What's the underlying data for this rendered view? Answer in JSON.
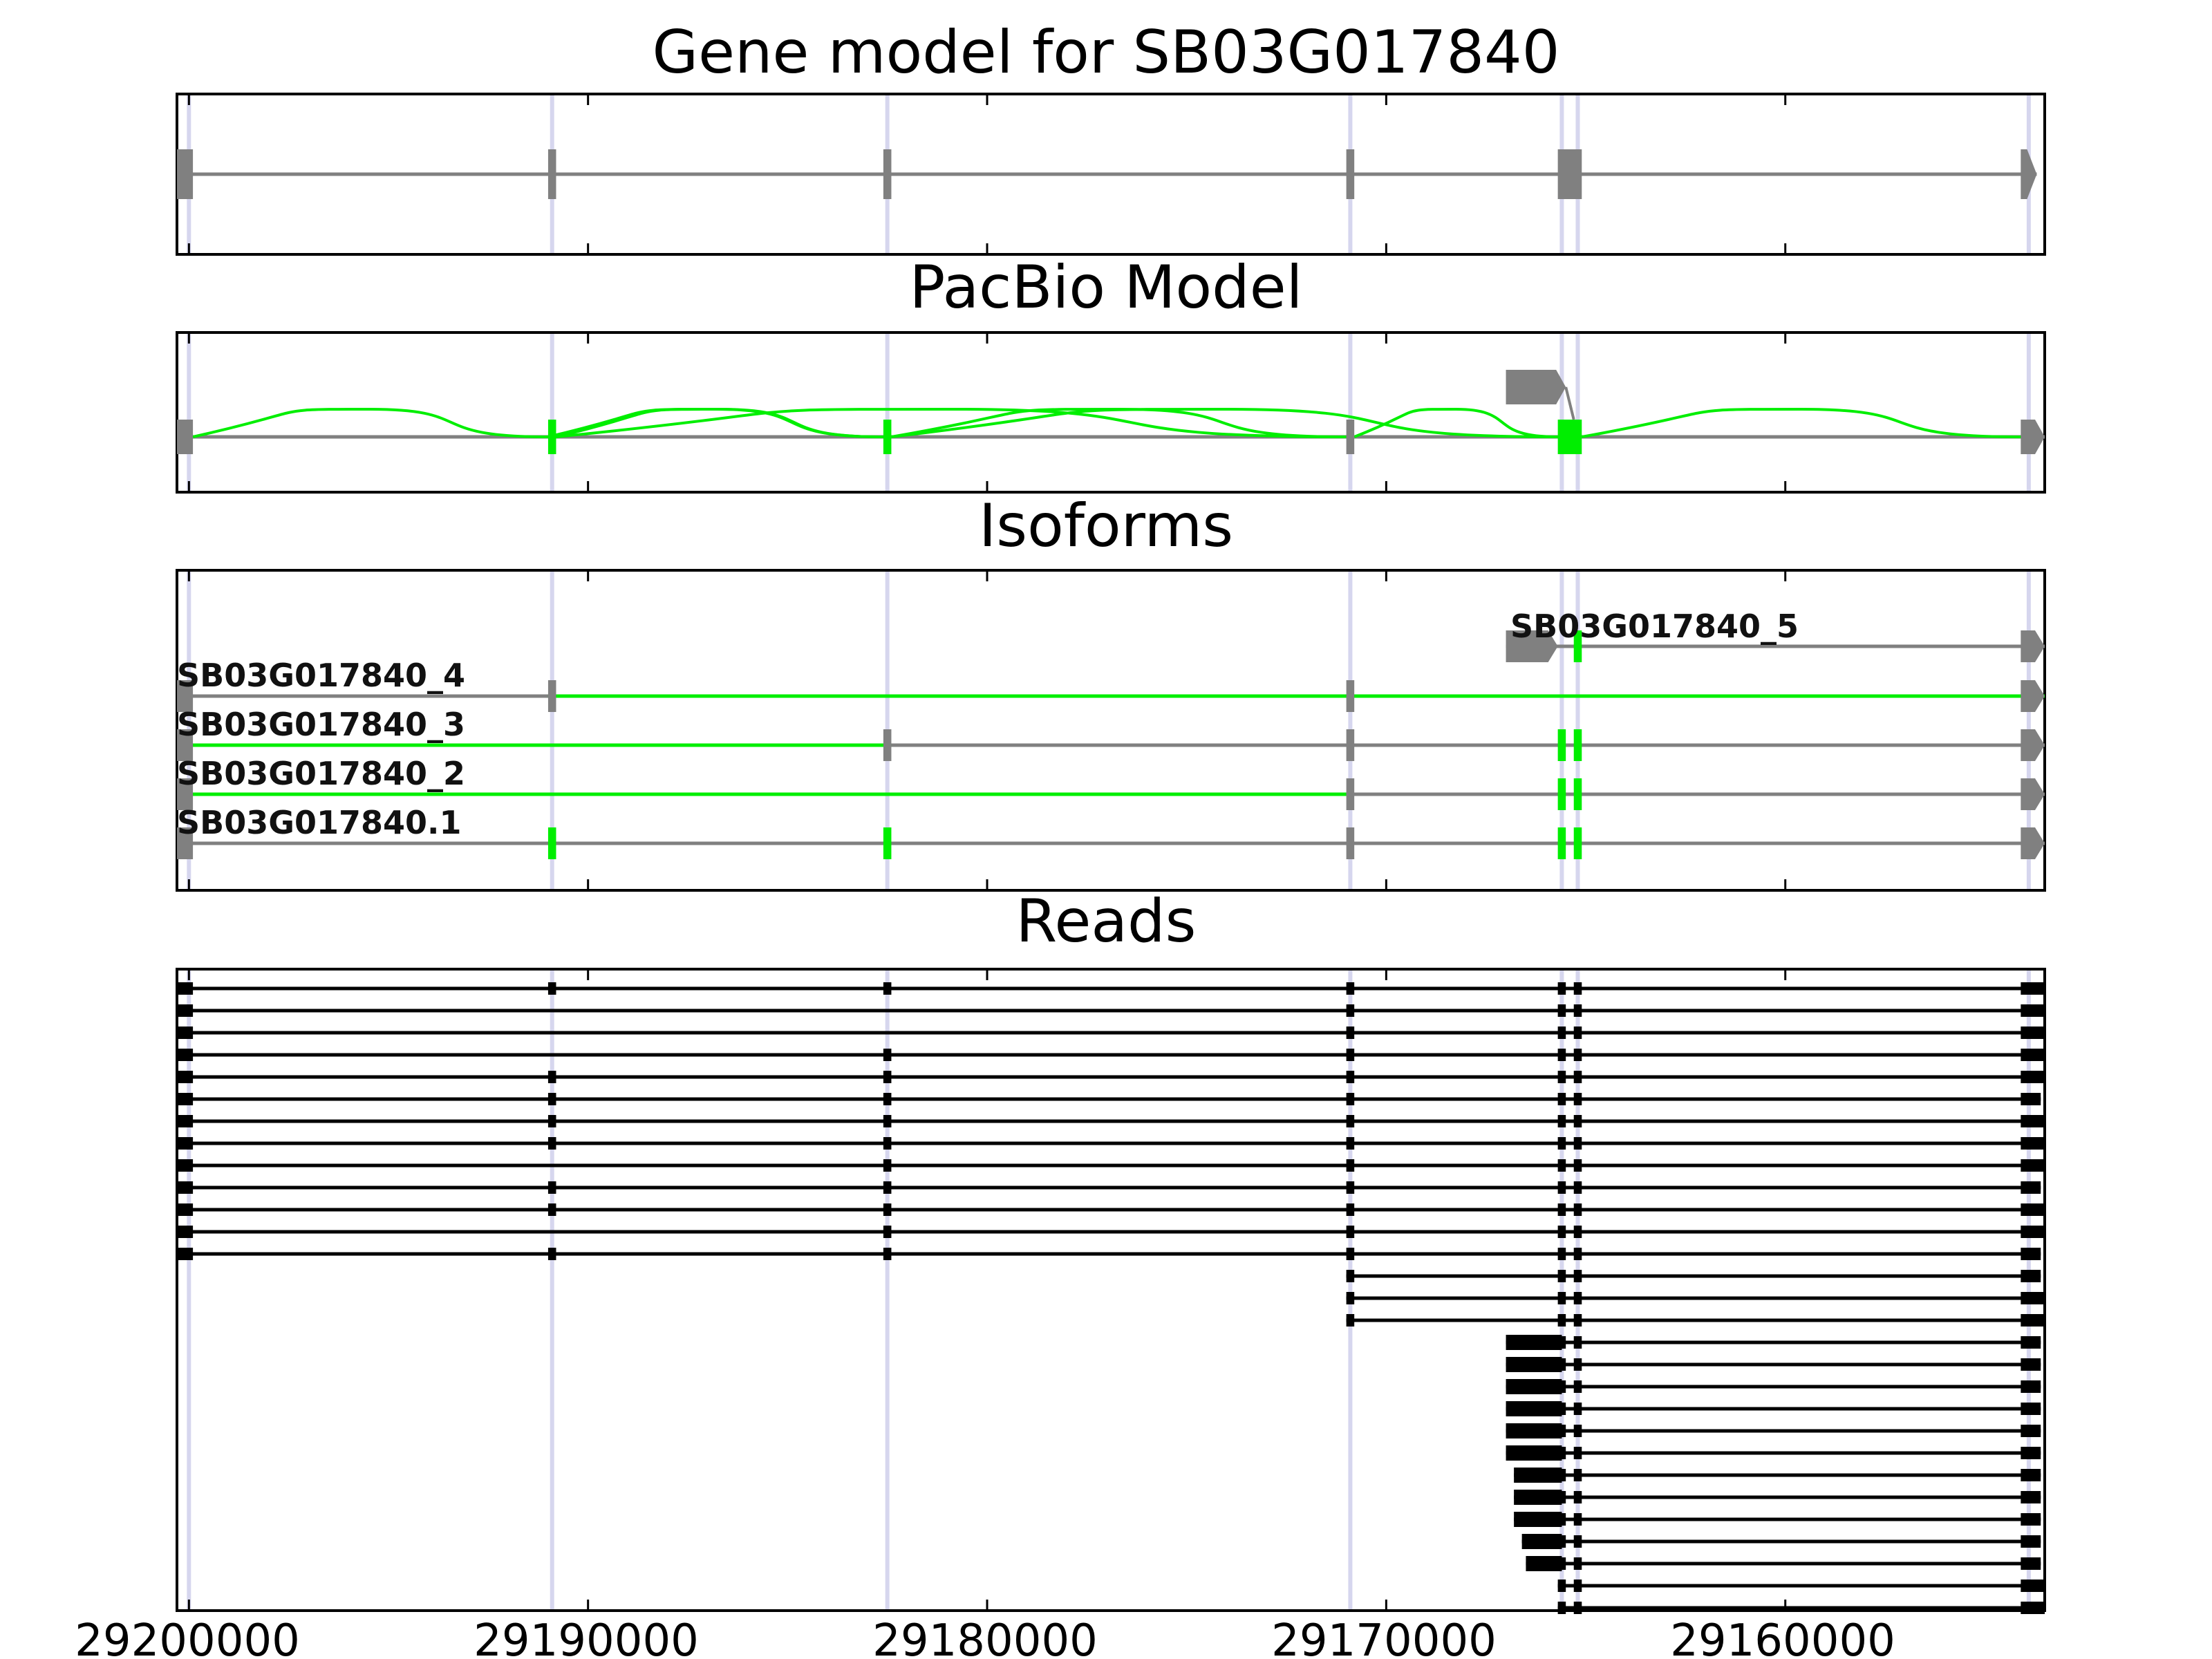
{
  "chart_data": {
    "type": "gene_model",
    "xaxis": {
      "range": [
        29200300,
        29153500
      ],
      "ticks": [
        29200000,
        29190000,
        29180000,
        29170000,
        29160000
      ],
      "tick_labels": [
        "29200000",
        "29190000",
        "29180000",
        "29170000",
        "29160000"
      ]
    },
    "colors": {
      "gene": "#808080",
      "pacbio": "#00ee00",
      "read": "#000000",
      "highlight": "#d6d6ee",
      "frame": "#000000"
    },
    "splice_sites": [
      29200000,
      29190900,
      29182500,
      29170900,
      29165600,
      29165200,
      29153900
    ],
    "panels": [
      {
        "title": "Gene model for SB03G017840",
        "kind": "gene",
        "exons": [
          [
            29200300,
            29199900
          ],
          [
            29191000,
            29190800
          ],
          [
            29182600,
            29182400
          ],
          [
            29171000,
            29170800
          ],
          [
            29165700,
            29165100
          ],
          [
            29154100,
            29153700
          ]
        ],
        "end_arrow": true
      },
      {
        "title": "PacBio Model",
        "kind": "pacbio",
        "exons": [
          [
            29200300,
            29199900
          ],
          [
            29191000,
            29190800
          ],
          [
            29182600,
            29182400
          ],
          [
            29171000,
            29170800
          ],
          [
            29165700,
            29165100
          ],
          [
            29154100,
            29153500
          ]
        ],
        "upper_exon": [
          29167000,
          29165500
        ],
        "arcs": [
          [
            29199900,
            29191000
          ],
          [
            29190800,
            29182600
          ],
          [
            29190800,
            29171000
          ],
          [
            29182400,
            29171000
          ],
          [
            29191000,
            29182600
          ],
          [
            29182400,
            29165700
          ],
          [
            29170800,
            29165700
          ],
          [
            29165100,
            29154100
          ]
        ]
      },
      {
        "title": "Isoforms",
        "kind": "isoforms",
        "isoforms": [
          {
            "name": "SB03G017840_5",
            "start": 29167000,
            "end": 29153500,
            "first_big": true,
            "exons": [
              [
                29167000,
                29165700
              ],
              [
                29165300,
                29165100
              ],
              [
                29154100,
                29153500
              ]
            ],
            "green": [
              [
                29165300,
                29165100
              ]
            ]
          },
          {
            "name": "SB03G017840_4",
            "start": 29200300,
            "end": 29153500,
            "exons": [
              [
                29200300,
                29199900
              ],
              [
                29191000,
                29190800
              ],
              [
                29171000,
                29170800
              ],
              [
                29154100,
                29153500
              ]
            ],
            "green": [
              [
                29191000,
                29153500
              ]
            ]
          },
          {
            "name": "SB03G017840_3",
            "start": 29200300,
            "end": 29153500,
            "exons": [
              [
                29200300,
                29199900
              ],
              [
                29182600,
                29182400
              ],
              [
                29171000,
                29170800
              ],
              [
                29165700,
                29165500
              ],
              [
                29165300,
                29165100
              ],
              [
                29154100,
                29153500
              ]
            ],
            "green": [
              [
                29199900,
                29182400
              ],
              [
                29165700,
                29165500
              ],
              [
                29165300,
                29165100
              ]
            ]
          },
          {
            "name": "SB03G017840_2",
            "start": 29200300,
            "end": 29153500,
            "exons": [
              [
                29200300,
                29199900
              ],
              [
                29171000,
                29170800
              ],
              [
                29165700,
                29165500
              ],
              [
                29165300,
                29165100
              ],
              [
                29154100,
                29153500
              ]
            ],
            "green": [
              [
                29199900,
                29171000
              ],
              [
                29165700,
                29165500
              ],
              [
                29165300,
                29165100
              ]
            ]
          },
          {
            "name": "SB03G017840.1",
            "start": 29200300,
            "end": 29153500,
            "exons": [
              [
                29200300,
                29199900
              ],
              [
                29191000,
                29190800
              ],
              [
                29182600,
                29182400
              ],
              [
                29171000,
                29170800
              ],
              [
                29165700,
                29165500
              ],
              [
                29165300,
                29165100
              ],
              [
                29154100,
                29153500
              ]
            ],
            "green": [
              [
                29191000,
                29190800
              ],
              [
                29182600,
                29182400
              ],
              [
                29165700,
                29165500
              ],
              [
                29165300,
                29165100
              ]
            ]
          }
        ]
      },
      {
        "title": "Reads",
        "kind": "reads",
        "reads": [
          {
            "start": 29200300,
            "end": 29153500,
            "skip": []
          },
          {
            "start": 29200300,
            "end": 29153500,
            "skip": [
              29191000,
              29182600
            ]
          },
          {
            "start": 29200300,
            "end": 29153500,
            "skip": [
              29191000,
              29182600
            ]
          },
          {
            "start": 29200300,
            "end": 29153500,
            "skip": [
              29191000
            ]
          },
          {
            "start": 29200300,
            "end": 29153500,
            "skip": []
          },
          {
            "start": 29200300,
            "end": 29153600,
            "skip": []
          },
          {
            "start": 29200300,
            "end": 29153500,
            "skip": []
          },
          {
            "start": 29200300,
            "end": 29153500,
            "skip": []
          },
          {
            "start": 29200300,
            "end": 29153500,
            "skip": [
              29191000
            ]
          },
          {
            "start": 29200300,
            "end": 29153600,
            "skip": []
          },
          {
            "start": 29200300,
            "end": 29153500,
            "skip": []
          },
          {
            "start": 29200300,
            "end": 29153500,
            "skip": [
              29191000
            ]
          },
          {
            "start": 29200300,
            "end": 29153600,
            "skip": []
          },
          {
            "start": 29171000,
            "end": 29153600,
            "skip": []
          },
          {
            "start": 29171000,
            "end": 29153500,
            "skip": []
          },
          {
            "start": 29171000,
            "end": 29153500,
            "skip": []
          },
          {
            "start": 29167000,
            "end": 29153600,
            "skip": []
          },
          {
            "start": 29167000,
            "end": 29153600,
            "skip": []
          },
          {
            "start": 29167000,
            "end": 29153600,
            "skip": []
          },
          {
            "start": 29167000,
            "end": 29153600,
            "skip": []
          },
          {
            "start": 29167000,
            "end": 29153600,
            "skip": []
          },
          {
            "start": 29167000,
            "end": 29153600,
            "skip": []
          },
          {
            "start": 29166800,
            "end": 29153600,
            "skip": []
          },
          {
            "start": 29166800,
            "end": 29153600,
            "skip": []
          },
          {
            "start": 29166800,
            "end": 29153600,
            "skip": []
          },
          {
            "start": 29166600,
            "end": 29153600,
            "skip": []
          },
          {
            "start": 29166500,
            "end": 29153600,
            "skip": []
          },
          {
            "start": 29165700,
            "end": 29153500,
            "skip": []
          },
          {
            "start": 29165700,
            "end": 29153500,
            "skip": []
          }
        ]
      }
    ]
  }
}
